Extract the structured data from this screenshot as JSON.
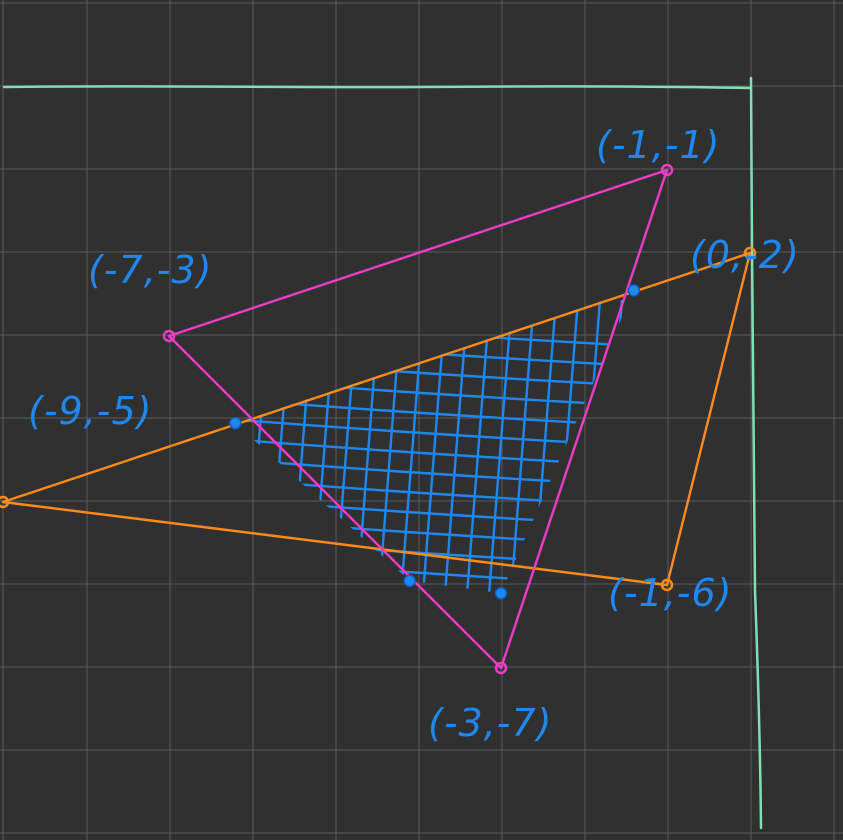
{
  "colors": {
    "background": "#303030",
    "grid": "#5a5a5a",
    "axes": "#7fe0b4",
    "triangle_a": "#f03cc8",
    "triangle_b": "#ff8c1a",
    "intersection": "#1e88f0",
    "labels": "#1e88f0"
  },
  "triangle_a": {
    "vertices": [
      {
        "x": -1,
        "y": -1,
        "label": "(-1,-1)"
      },
      {
        "x": -7,
        "y": -3,
        "label": "(-7,-3)"
      },
      {
        "x": -3,
        "y": -7,
        "label": "(-3,-7)"
      }
    ]
  },
  "triangle_b": {
    "vertices": [
      {
        "x": 0,
        "y": -2,
        "label": "(0,-2)"
      },
      {
        "x": -9,
        "y": -5,
        "label": "(-9,-5)"
      },
      {
        "x": -1,
        "y": -6,
        "label": "(-1,-6)"
      }
    ]
  },
  "intersection_polygon": [
    {
      "x": -1.4,
      "y": -2.45
    },
    {
      "x": -6.2,
      "y": -4.05
    },
    {
      "x": -4.1,
      "y": -5.95
    },
    {
      "x": -3.0,
      "y": -6.1
    }
  ],
  "grid": {
    "x_range": [
      -9,
      1
    ],
    "y_range": [
      -8,
      1
    ],
    "shown": true
  }
}
